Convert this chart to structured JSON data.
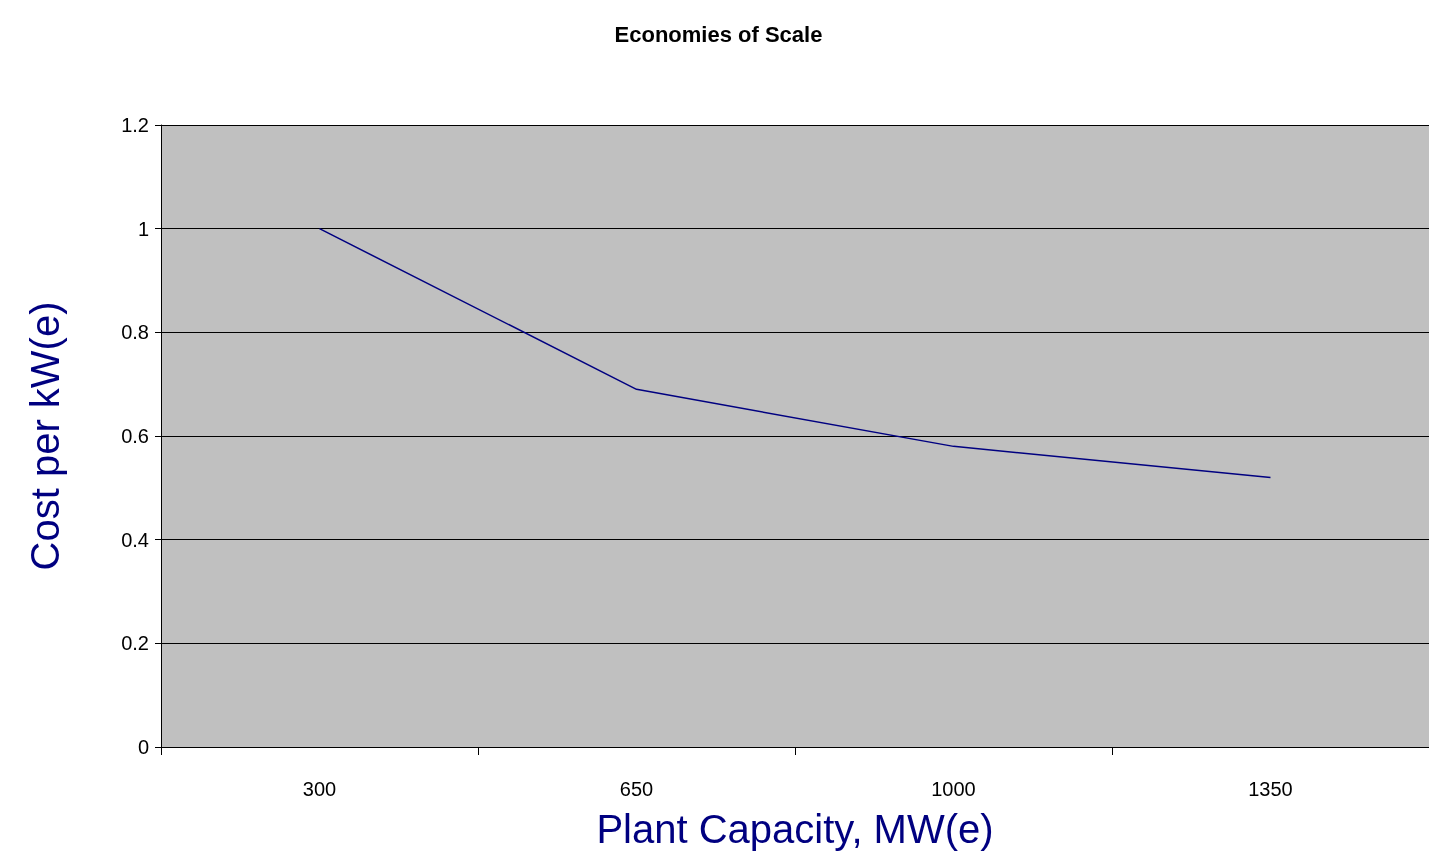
{
  "chart_data": {
    "type": "line",
    "title": "Economies of Scale",
    "xlabel": "Plant Capacity, MW(e)",
    "ylabel": "Cost per kW(e)",
    "categories": [
      "300",
      "650",
      "1000",
      "1350"
    ],
    "series": [
      {
        "color": "#000080",
        "values": [
          1.0,
          0.69,
          0.58,
          0.52
        ]
      }
    ],
    "ylim": [
      0,
      1.2
    ],
    "yticks": [
      0,
      0.2,
      0.4,
      0.6,
      0.8,
      1,
      1.2
    ],
    "grid": "y",
    "marker": "none",
    "line_style": "solid"
  }
}
